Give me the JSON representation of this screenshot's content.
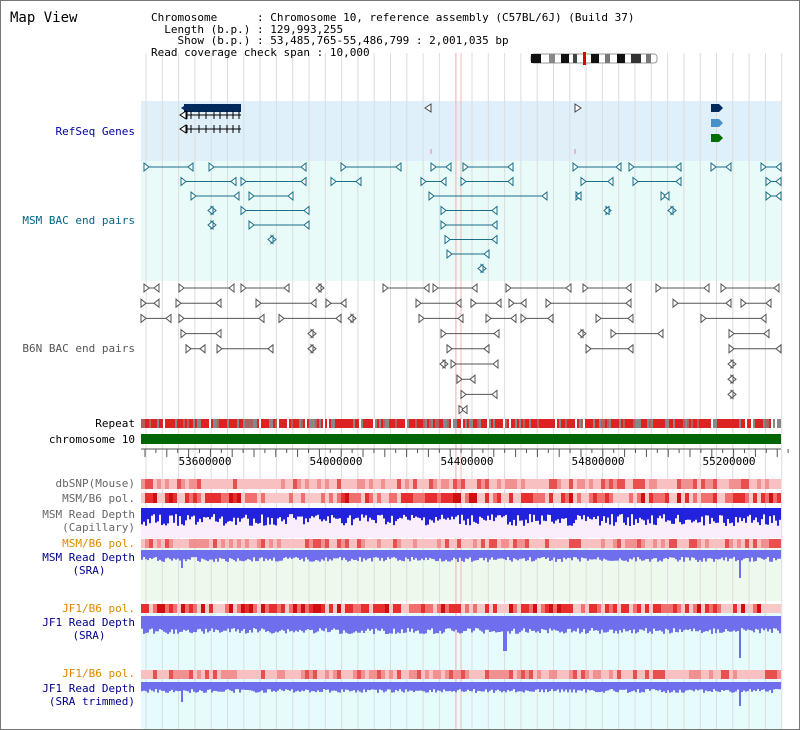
{
  "title": "Map View",
  "info": {
    "chromosome_key": "Chromosome",
    "chromosome_value": "Chromosome 10, reference assembly (C57BL/6J) (Build 37)",
    "length_key": "Length (b.p.)",
    "length_value": "129,993,255",
    "show_key": "Show (b.p.)",
    "show_value": "53,485,765-55,486,799 : 2,001,035 bp",
    "span_key": "Read coverage check span",
    "span_value": "10,000"
  },
  "tracks": {
    "refseq": "RefSeq Genes",
    "msm_bac": "MSM BAC end pairs",
    "b6n_bac": "B6N BAC end pairs",
    "repeat": "Repeat",
    "chromosome": "chromosome 10",
    "dbsnp": "dbSNP(Mouse)",
    "msm_b6_pol": "MSM/B6 pol.",
    "msm_depth_cap_1": "MSM Read Depth",
    "msm_depth_cap_2": "(Capillary)",
    "msm_b6_pol2": "MSM/B6 pol.",
    "msm_depth_sra_1": "MSM Read Depth",
    "msm_depth_sra_2": "(SRA)",
    "jf1_b6_pol": "JF1/B6 pol.",
    "jf1_depth_sra_1": "JF1 Read Depth",
    "jf1_depth_sra_2": "(SRA)",
    "jf1_b6_pol2": "JF1/B6 pol.",
    "jf1_depth_trim_1": "JF1 Read Depth",
    "jf1_depth_trim_2": "(SRA trimmed)"
  },
  "axis_ticks": [
    "53600000",
    "54000000",
    "54400000",
    "54800000",
    "55200000"
  ],
  "colors": {
    "refseq_bg": "#dff0fa",
    "msm_bg": "#e8fbf8",
    "msm_feature": "#1a6e88",
    "b6n_feature": "#555555",
    "chromosome_bar": "#006400",
    "read_depth": "#2222dd",
    "sra_depth": "#6f6fee",
    "polymorphism": "#ee2222"
  }
}
